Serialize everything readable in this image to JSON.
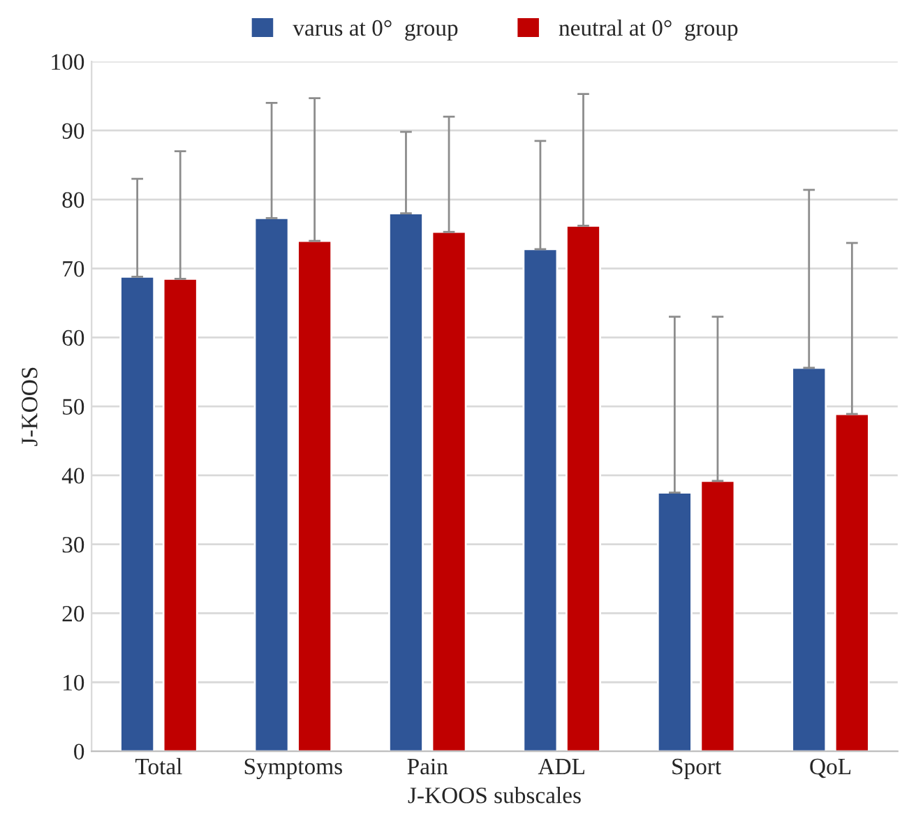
{
  "chart_data": {
    "type": "bar",
    "xlabel": "J-KOOS subscales",
    "ylabel": "J-KOOS",
    "categories": [
      "Total",
      "Symptoms",
      "Pain",
      "ADL",
      "Sport",
      "QoL"
    ],
    "series": [
      {
        "name": "varus at 0°  group",
        "color": "#2f5597",
        "values": [
          68.8,
          77.3,
          78.0,
          72.8,
          37.5,
          55.6
        ],
        "errors": [
          [
            68.8,
            83.0
          ],
          [
            77.3,
            94.0
          ],
          [
            78.0,
            89.8
          ],
          [
            72.8,
            88.5
          ],
          [
            37.5,
            63.0
          ],
          [
            55.6,
            81.4
          ]
        ]
      },
      {
        "name": "neutral at 0°  group",
        "color": "#c00000",
        "values": [
          68.5,
          74.0,
          75.3,
          76.2,
          39.2,
          48.9
        ],
        "errors": [
          [
            68.5,
            87.0
          ],
          [
            74.0,
            94.7
          ],
          [
            75.3,
            92.0
          ],
          [
            76.2,
            95.3
          ],
          [
            39.2,
            63.0
          ],
          [
            48.9,
            73.7
          ]
        ]
      }
    ],
    "ylim": [
      0,
      100
    ],
    "yticks": [
      0,
      10,
      20,
      30,
      40,
      50,
      60,
      70,
      80,
      90,
      100
    ],
    "grid": "y",
    "legend": "top"
  }
}
